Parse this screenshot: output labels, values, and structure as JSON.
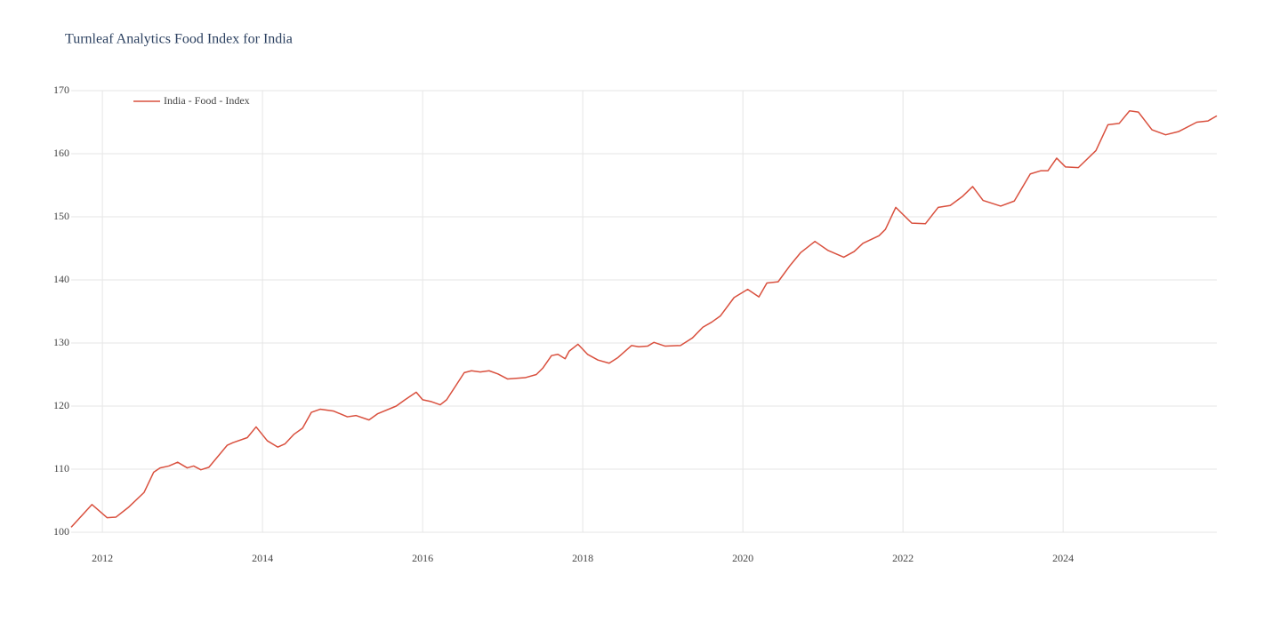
{
  "chart_data": {
    "type": "line",
    "title": "Turnleaf Analytics Food Index for India",
    "x": [
      2011.61,
      2011.87,
      2012.06,
      2012.17,
      2012.33,
      2012.52,
      2012.64,
      2012.72,
      2012.83,
      2012.94,
      2013.06,
      2013.14,
      2013.23,
      2013.33,
      2013.56,
      2013.63,
      2013.81,
      2013.92,
      2014.06,
      2014.19,
      2014.28,
      2014.39,
      2014.5,
      2014.61,
      2014.72,
      2014.89,
      2015.06,
      2015.17,
      2015.33,
      2015.44,
      2015.67,
      2015.78,
      2015.92,
      2016.0,
      2016.11,
      2016.22,
      2016.3,
      2016.52,
      2016.61,
      2016.72,
      2016.83,
      2016.94,
      2017.06,
      2017.28,
      2017.42,
      2017.5,
      2017.61,
      2017.69,
      2017.78,
      2017.83,
      2017.94,
      2018.06,
      2018.19,
      2018.33,
      2018.44,
      2018.61,
      2018.7,
      2018.81,
      2018.89,
      2019.03,
      2019.22,
      2019.37,
      2019.5,
      2019.61,
      2019.72,
      2019.89,
      2020.06,
      2020.2,
      2020.3,
      2020.44,
      2020.59,
      2020.72,
      2020.9,
      2021.06,
      2021.26,
      2021.39,
      2021.5,
      2021.7,
      2021.78,
      2021.91,
      2022.11,
      2022.28,
      2022.44,
      2022.59,
      2022.74,
      2022.87,
      2023.0,
      2023.22,
      2023.39,
      2023.59,
      2023.72,
      2023.81,
      2023.92,
      2024.03,
      2024.19,
      2024.41,
      2024.56,
      2024.7,
      2024.83,
      2024.94,
      2025.11,
      2025.28,
      2025.44,
      2025.67,
      2025.81,
      2025.92
    ],
    "series": [
      {
        "name": "India - Food - Index",
        "color": "#d9503e",
        "values": [
          100.8,
          104.4,
          102.3,
          102.4,
          104,
          106.3,
          109.5,
          110.2,
          110.5,
          111.1,
          110.2,
          110.5,
          109.9,
          110.3,
          113.8,
          114.2,
          115,
          116.7,
          114.5,
          113.5,
          114,
          115.5,
          116.5,
          119,
          119.5,
          119.2,
          118.3,
          118.5,
          117.8,
          118.8,
          120,
          121,
          122.2,
          121,
          120.7,
          120.2,
          121,
          125.3,
          125.6,
          125.4,
          125.6,
          125.1,
          124.3,
          124.5,
          125,
          126,
          128,
          128.2,
          127.5,
          128.7,
          129.8,
          128.2,
          127.3,
          126.8,
          127.7,
          129.6,
          129.4,
          129.5,
          130.1,
          129.5,
          129.6,
          130.8,
          132.5,
          133.3,
          134.3,
          137.2,
          138.5,
          137.3,
          139.5,
          139.7,
          142.3,
          144.3,
          146.1,
          144.7,
          143.6,
          144.5,
          145.8,
          147,
          148,
          151.5,
          149,
          148.9,
          151.5,
          151.8,
          153.2,
          154.8,
          152.6,
          151.7,
          152.5,
          156.8,
          157.3,
          157.3,
          159.3,
          157.9,
          157.8,
          160.5,
          164.6,
          164.8,
          166.8,
          166.6,
          163.8,
          163,
          163.5,
          165,
          165.2,
          166
        ]
      }
    ],
    "xlim": [
      2011.61,
      2025.92
    ],
    "xticks": [
      2012,
      2014,
      2016,
      2018,
      2020,
      2022,
      2024
    ],
    "ylim": [
      100,
      170
    ],
    "yticks": [
      100,
      110,
      120,
      130,
      140,
      150,
      160,
      170
    ],
    "grid": true,
    "legend": "top-left"
  }
}
